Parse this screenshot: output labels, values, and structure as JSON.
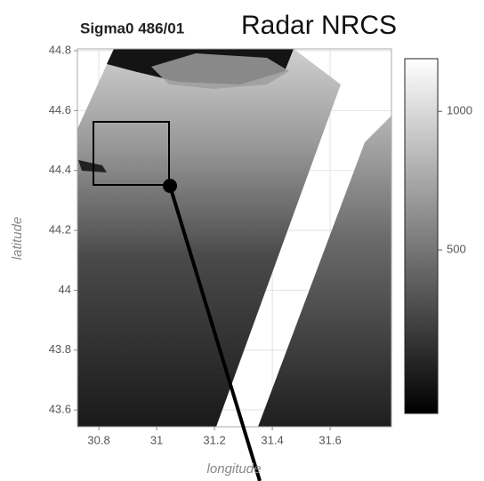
{
  "chart_data": {
    "type": "heatmap",
    "title": "Sigma0 486/01",
    "subtitle": "Radar NRCS",
    "xlabel": "longitude",
    "ylabel": "latitude",
    "xlim": [
      30.726,
      31.812
    ],
    "xticks": [
      30.8,
      31,
      31.2,
      31.4,
      31.6
    ],
    "ylim": [
      43.544,
      44.806
    ],
    "yticks": [
      43.6,
      43.8,
      44,
      44.2,
      44.4,
      44.6,
      44.8
    ],
    "colorbar": {
      "lim": [
        -90,
        1190
      ],
      "ticks": [
        500,
        1000
      ]
    },
    "grid": true
  }
}
